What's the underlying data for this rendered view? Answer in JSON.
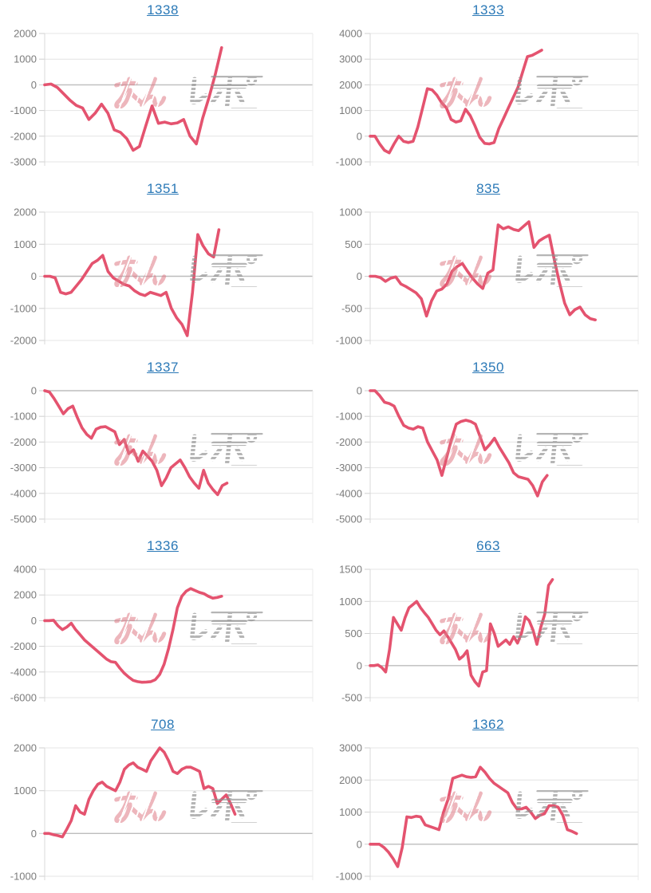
{
  "watermark": {
    "pink_text": "みん",
    "gray_text": "レポ"
  },
  "colors": {
    "line": "#e4536f",
    "title_link": "#2b79b7",
    "axis_label": "#7b7b7b",
    "gridline": "#e4e4e4",
    "zero_line": "#bdbdbd",
    "tick_mark": "#cfcfcf",
    "axis_line_left": "#d8d8d8",
    "axis_line_right": "#ebebeb",
    "watermark_pink": "#df7b87",
    "watermark_gray": "#8f8f8f"
  },
  "chart_data": [
    {
      "type": "line",
      "title": "1338",
      "yticks": [
        2000,
        1000,
        0,
        -1000,
        -2000,
        -3000
      ],
      "ylim": [
        -3000,
        2000
      ],
      "x_span": 0.66,
      "grid": true,
      "legend": "none",
      "values": [
        0,
        30,
        -100,
        -350,
        -600,
        -800,
        -900,
        -1350,
        -1100,
        -750,
        -1100,
        -1750,
        -1850,
        -2100,
        -2550,
        -2400,
        -1600,
        -820,
        -1500,
        -1450,
        -1520,
        -1480,
        -1350,
        -2000,
        -2300,
        -1300,
        -500,
        400,
        1450
      ]
    },
    {
      "type": "line",
      "title": "1333",
      "yticks": [
        4000,
        3000,
        2000,
        1000,
        0,
        -1000
      ],
      "ylim": [
        -1000,
        4000
      ],
      "x_span": 0.64,
      "grid": true,
      "legend": "none",
      "values": [
        0,
        0,
        -300,
        -550,
        -650,
        -300,
        0,
        -200,
        -250,
        -200,
        350,
        1100,
        1850,
        1800,
        1600,
        1300,
        1100,
        650,
        550,
        600,
        1050,
        800,
        400,
        -50,
        -280,
        -300,
        -250,
        300,
        700,
        1100,
        1500,
        1900,
        2500,
        3100,
        3150,
        3250,
        3350
      ]
    },
    {
      "type": "line",
      "title": "1351",
      "yticks": [
        2000,
        1000,
        0,
        -1000,
        -2000
      ],
      "ylim": [
        -2000,
        2000
      ],
      "x_span": 0.65,
      "grid": true,
      "legend": "none",
      "values": [
        0,
        0,
        -50,
        -500,
        -550,
        -500,
        -300,
        -100,
        150,
        400,
        500,
        650,
        150,
        -50,
        -150,
        -250,
        -300,
        -450,
        -550,
        -600,
        -500,
        -550,
        -600,
        -500,
        -1000,
        -1300,
        -1500,
        -1850,
        -500,
        1300,
        950,
        700,
        600,
        1450
      ]
    },
    {
      "type": "line",
      "title": "835",
      "yticks": [
        1000,
        500,
        0,
        -500,
        -1000
      ],
      "ylim": [
        -1000,
        1000
      ],
      "x_span": 0.84,
      "grid": true,
      "legend": "none",
      "values": [
        0,
        0,
        -20,
        -80,
        -30,
        -10,
        -120,
        -160,
        -210,
        -260,
        -350,
        -620,
        -380,
        -230,
        -200,
        -120,
        80,
        150,
        200,
        80,
        -30,
        -120,
        -190,
        50,
        100,
        800,
        740,
        770,
        730,
        710,
        780,
        850,
        450,
        550,
        600,
        640,
        250,
        -100,
        -420,
        -600,
        -520,
        -480,
        -600,
        -660,
        -680
      ]
    },
    {
      "type": "line",
      "title": "1337",
      "yticks": [
        0,
        -1000,
        -2000,
        -3000,
        -4000,
        -5000
      ],
      "ylim": [
        -5000,
        0
      ],
      "x_span": 0.68,
      "grid": true,
      "legend": "none",
      "values": [
        0,
        -50,
        -300,
        -600,
        -900,
        -700,
        -600,
        -1050,
        -1450,
        -1700,
        -1850,
        -1500,
        -1420,
        -1400,
        -1500,
        -1600,
        -2100,
        -1900,
        -2450,
        -2300,
        -2750,
        -2350,
        -2550,
        -2750,
        -3100,
        -3700,
        -3400,
        -3000,
        -2850,
        -2700,
        -3000,
        -3350,
        -3600,
        -3800,
        -3100,
        -3600,
        -3850,
        -4050,
        -3700,
        -3600
      ]
    },
    {
      "type": "line",
      "title": "1350",
      "yticks": [
        0,
        -1000,
        -2000,
        -3000,
        -4000,
        -5000
      ],
      "ylim": [
        -5000,
        0
      ],
      "x_span": 0.66,
      "grid": true,
      "legend": "none",
      "values": [
        0,
        0,
        -200,
        -450,
        -500,
        -600,
        -1000,
        -1350,
        -1450,
        -1500,
        -1400,
        -1450,
        -2000,
        -2350,
        -2700,
        -3300,
        -2600,
        -1900,
        -1300,
        -1200,
        -1150,
        -1200,
        -1300,
        -1800,
        -2300,
        -2100,
        -1850,
        -2200,
        -2500,
        -2800,
        -3200,
        -3350,
        -3400,
        -3450,
        -3700,
        -4100,
        -3550,
        -3300
      ]
    },
    {
      "type": "line",
      "title": "1336",
      "yticks": [
        4000,
        2000,
        0,
        -2000,
        -4000,
        -6000
      ],
      "ylim": [
        -6000,
        4000
      ],
      "x_span": 0.66,
      "grid": true,
      "legend": "none",
      "values": [
        0,
        0,
        30,
        -400,
        -700,
        -500,
        -200,
        -700,
        -1100,
        -1500,
        -1800,
        -2100,
        -2400,
        -2700,
        -3000,
        -3200,
        -3250,
        -3700,
        -4100,
        -4400,
        -4650,
        -4750,
        -4800,
        -4780,
        -4750,
        -4600,
        -4200,
        -3400,
        -2200,
        -700,
        1000,
        1900,
        2300,
        2500,
        2350,
        2200,
        2100,
        1900,
        1750,
        1800,
        1900
      ]
    },
    {
      "type": "line",
      "title": "663",
      "yticks": [
        1500,
        1000,
        500,
        0,
        -500
      ],
      "ylim": [
        -500,
        1500
      ],
      "x_span": 0.68,
      "grid": true,
      "legend": "none",
      "values": [
        0,
        0,
        10,
        -30,
        -100,
        250,
        750,
        650,
        550,
        750,
        900,
        950,
        1000,
        900,
        820,
        750,
        650,
        550,
        480,
        540,
        450,
        350,
        250,
        100,
        150,
        230,
        -150,
        -250,
        -320,
        -100,
        -80,
        650,
        500,
        300,
        350,
        400,
        330,
        450,
        350,
        500,
        760,
        700,
        550,
        330,
        600,
        800,
        1250,
        1340
      ]
    },
    {
      "type": "line",
      "title": "708",
      "yticks": [
        2000,
        1000,
        0,
        -1000
      ],
      "ylim": [
        -1000,
        2000
      ],
      "x_span": 0.71,
      "grid": true,
      "legend": "none",
      "values": [
        0,
        0,
        -30,
        -50,
        -80,
        100,
        300,
        650,
        500,
        450,
        800,
        1000,
        1150,
        1200,
        1100,
        1050,
        1000,
        1200,
        1500,
        1600,
        1650,
        1550,
        1500,
        1450,
        1700,
        1850,
        2000,
        1900,
        1700,
        1450,
        1400,
        1500,
        1550,
        1550,
        1500,
        1450,
        1050,
        1100,
        1050,
        700,
        800,
        900,
        700,
        450
      ]
    },
    {
      "type": "line",
      "title": "1362",
      "yticks": [
        3000,
        2000,
        1000,
        0,
        -1000
      ],
      "ylim": [
        -1000,
        3000
      ],
      "x_span": 0.77,
      "grid": true,
      "legend": "none",
      "values": [
        0,
        0,
        0,
        -100,
        -250,
        -450,
        -700,
        -100,
        850,
        830,
        870,
        850,
        600,
        550,
        500,
        450,
        1000,
        1400,
        2050,
        2100,
        2150,
        2100,
        2080,
        2100,
        2400,
        2250,
        2050,
        1900,
        1800,
        1700,
        1600,
        1300,
        1100,
        1100,
        1150,
        1000,
        800,
        900,
        950,
        1200,
        1200,
        1150,
        900,
        450,
        400,
        330
      ]
    }
  ]
}
